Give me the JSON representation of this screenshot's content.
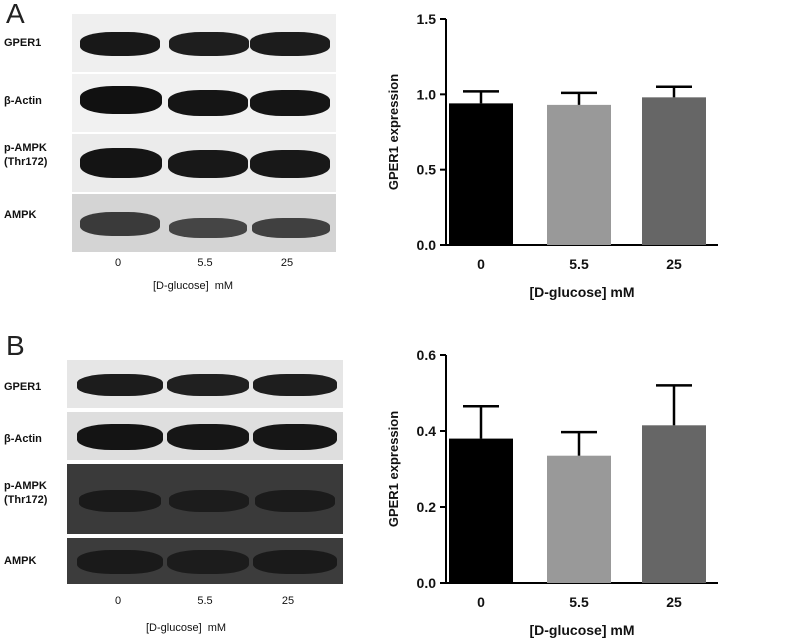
{
  "panels": [
    {
      "letter": "A",
      "blot": {
        "rows": [
          {
            "label": "GPER1",
            "label2": ""
          },
          {
            "label": "β-Actin",
            "label2": ""
          },
          {
            "label": "p-AMPK",
            "label2": "(Thr172)"
          },
          {
            "label": "AMPK",
            "label2": ""
          }
        ],
        "lanes": [
          "0",
          "5.5",
          "25"
        ],
        "xlabel": "[D-glucose]  mM"
      }
    },
    {
      "letter": "B",
      "blot": {
        "rows": [
          {
            "label": "GPER1",
            "label2": ""
          },
          {
            "label": "β-Actin",
            "label2": ""
          },
          {
            "label": "p-AMPK",
            "label2": "(Thr172)"
          },
          {
            "label": "AMPK",
            "label2": ""
          }
        ],
        "lanes": [
          "0",
          "5.5",
          "25"
        ],
        "xlabel": "[D-glucose]  mM"
      }
    }
  ],
  "chart_data": [
    {
      "type": "bar",
      "categories": [
        "0",
        "5.5",
        "25"
      ],
      "values": [
        0.94,
        0.93,
        0.98
      ],
      "errors": [
        0.08,
        0.08,
        0.07
      ],
      "xlabel": "[D-glucose] mM",
      "ylabel": "GPER1 expression",
      "ylim": [
        0,
        1.5
      ],
      "yticks": [
        "0.0",
        "0.5",
        "1.0",
        "1.5"
      ],
      "colors": [
        "#000000",
        "#999999",
        "#666666"
      ]
    },
    {
      "type": "bar",
      "categories": [
        "0",
        "5.5",
        "25"
      ],
      "values": [
        0.38,
        0.335,
        0.415
      ],
      "errors": [
        0.085,
        0.062,
        0.105
      ],
      "xlabel": "[D-glucose] mM",
      "ylabel": "GPER1 expression",
      "ylim": [
        0,
        0.6
      ],
      "yticks": [
        "0.0",
        "0.2",
        "0.4",
        "0.6"
      ],
      "colors": [
        "#000000",
        "#999999",
        "#666666"
      ]
    }
  ]
}
